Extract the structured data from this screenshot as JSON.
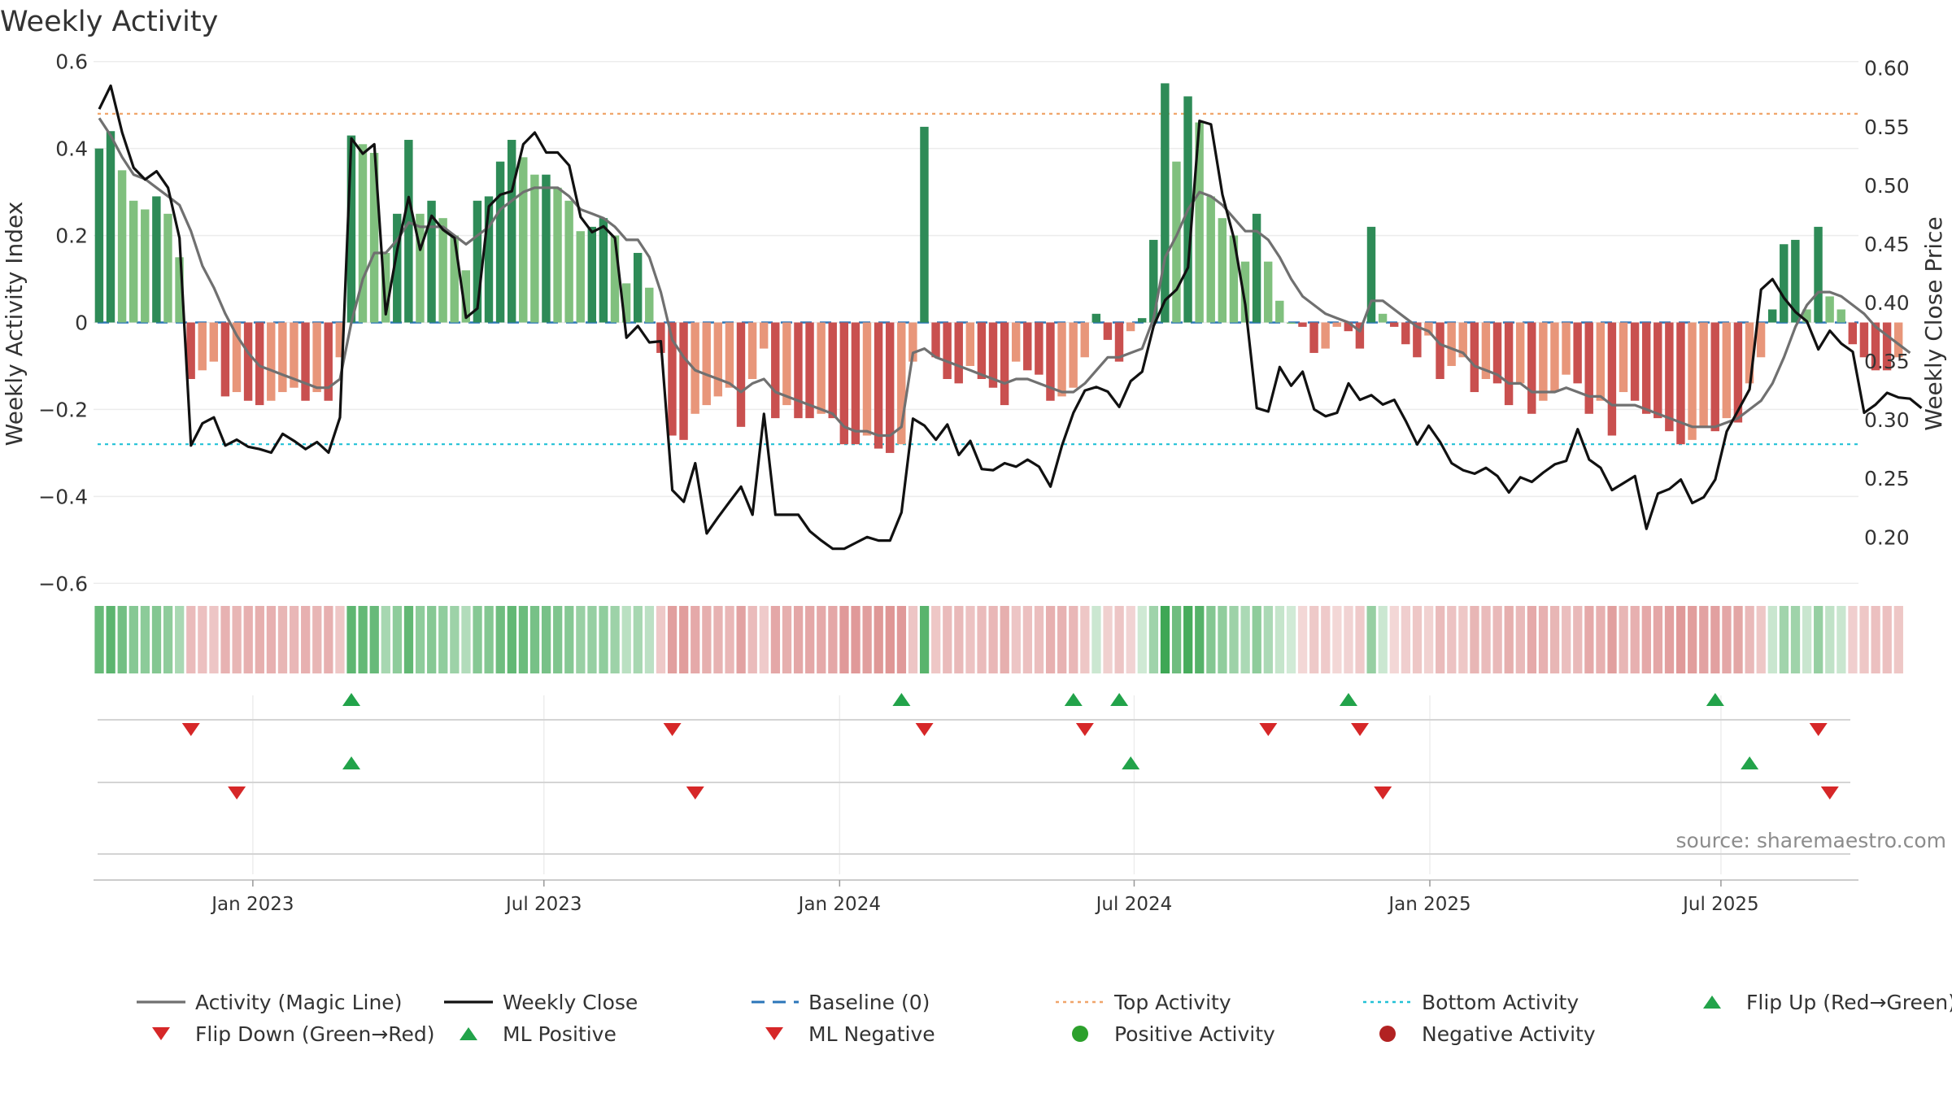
{
  "chart_data": {
    "type": "bar+line",
    "title": "Weekly Activity",
    "ylabel_left": "Weekly Activity Index",
    "ylabel_right": "Weekly Close Price",
    "source": "source: sharemaestro.com",
    "ylim_left": [
      -0.62,
      0.62
    ],
    "ylim_right": [
      0.153,
      0.613
    ],
    "yticks_left": [
      -0.6,
      -0.4,
      -0.2,
      0,
      0.2,
      0.4,
      0.6
    ],
    "yticks_left_labels": [
      "−0.6",
      "−0.4",
      "−0.2",
      "0",
      "0.2",
      "0.4",
      "0.6"
    ],
    "yticks_right": [
      0.2,
      0.25,
      0.3,
      0.35,
      0.4,
      0.45,
      0.5,
      0.55,
      0.6
    ],
    "yticks_right_labels": [
      "0.20",
      "0.25",
      "0.30",
      "0.35",
      "0.40",
      "0.45",
      "0.50",
      "0.55",
      "0.60"
    ],
    "top_activity": 0.48,
    "bottom_activity": -0.28,
    "x_start_week": 0,
    "x_end_week": 154,
    "xticks": [
      {
        "label": "Jan 2023",
        "week": 13.9
      },
      {
        "label": "Jul 2023",
        "week": 39.3
      },
      {
        "label": "Jan 2024",
        "week": 65.1
      },
      {
        "label": "Jul 2024",
        "week": 90.8
      },
      {
        "label": "Jan 2025",
        "week": 116.6
      },
      {
        "label": "Jul 2025",
        "week": 142.0
      }
    ],
    "activity": [
      0.4,
      0.44,
      0.35,
      0.28,
      0.26,
      0.29,
      0.25,
      0.15,
      -0.13,
      -0.11,
      -0.09,
      -0.17,
      -0.16,
      -0.18,
      -0.19,
      -0.18,
      -0.16,
      -0.15,
      -0.18,
      -0.16,
      -0.18,
      -0.08,
      0.43,
      0.41,
      0.39,
      0.16,
      0.25,
      0.42,
      0.25,
      0.28,
      0.24,
      0.2,
      0.12,
      0.28,
      0.29,
      0.37,
      0.42,
      0.38,
      0.34,
      0.34,
      0.31,
      0.28,
      0.21,
      0.22,
      0.24,
      0.2,
      0.09,
      0.16,
      0.08,
      -0.07,
      -0.26,
      -0.27,
      -0.21,
      -0.19,
      -0.17,
      -0.15,
      -0.24,
      -0.13,
      -0.06,
      -0.22,
      -0.19,
      -0.22,
      -0.22,
      -0.21,
      -0.22,
      -0.28,
      -0.28,
      -0.26,
      -0.29,
      -0.3,
      -0.28,
      -0.09,
      0.45,
      -0.08,
      -0.13,
      -0.14,
      -0.1,
      -0.13,
      -0.15,
      -0.19,
      -0.09,
      -0.11,
      -0.12,
      -0.18,
      -0.17,
      -0.15,
      -0.08,
      0.02,
      -0.04,
      -0.09,
      -0.02,
      0.01,
      0.19,
      0.55,
      0.37,
      0.52,
      0.46,
      0.29,
      0.24,
      0.2,
      0.14,
      0.25,
      0.14,
      0.05,
      0.0,
      -0.01,
      -0.07,
      -0.06,
      -0.01,
      -0.02,
      -0.06,
      0.22,
      0.02,
      -0.01,
      -0.05,
      -0.08,
      -0.03,
      -0.13,
      -0.1,
      -0.08,
      -0.16,
      -0.13,
      -0.14,
      -0.19,
      -0.14,
      -0.21,
      -0.18,
      -0.16,
      -0.12,
      -0.14,
      -0.21,
      -0.18,
      -0.26,
      -0.16,
      -0.18,
      -0.21,
      -0.22,
      -0.25,
      -0.28,
      -0.27,
      -0.24,
      -0.25,
      -0.22,
      -0.23,
      -0.14,
      -0.08,
      0.03,
      0.18,
      0.19,
      0.03,
      0.22,
      0.06,
      0.03,
      -0.05,
      -0.08,
      -0.11,
      -0.11,
      -0.08
    ],
    "magic_line": [
      0.47,
      0.43,
      0.38,
      0.34,
      0.33,
      0.31,
      0.29,
      0.27,
      0.21,
      0.13,
      0.08,
      0.02,
      -0.03,
      -0.07,
      -0.1,
      -0.11,
      -0.12,
      -0.13,
      -0.14,
      -0.15,
      -0.15,
      -0.13,
      0.0,
      0.1,
      0.16,
      0.16,
      0.19,
      0.23,
      0.22,
      0.22,
      0.22,
      0.2,
      0.18,
      0.2,
      0.22,
      0.26,
      0.28,
      0.3,
      0.31,
      0.31,
      0.31,
      0.29,
      0.26,
      0.25,
      0.24,
      0.22,
      0.19,
      0.19,
      0.15,
      0.07,
      -0.04,
      -0.08,
      -0.11,
      -0.12,
      -0.13,
      -0.14,
      -0.16,
      -0.14,
      -0.13,
      -0.16,
      -0.17,
      -0.18,
      -0.19,
      -0.2,
      -0.21,
      -0.24,
      -0.25,
      -0.25,
      -0.26,
      -0.26,
      -0.24,
      -0.07,
      -0.06,
      -0.08,
      -0.09,
      -0.1,
      -0.11,
      -0.12,
      -0.13,
      -0.14,
      -0.13,
      -0.13,
      -0.14,
      -0.15,
      -0.16,
      -0.16,
      -0.14,
      -0.11,
      -0.08,
      -0.08,
      -0.07,
      -0.06,
      0.01,
      0.15,
      0.2,
      0.26,
      0.3,
      0.29,
      0.27,
      0.24,
      0.21,
      0.21,
      0.19,
      0.15,
      0.1,
      0.06,
      0.04,
      0.02,
      0.01,
      0.0,
      -0.02,
      0.05,
      0.05,
      0.03,
      0.01,
      -0.01,
      -0.02,
      -0.05,
      -0.06,
      -0.07,
      -0.1,
      -0.11,
      -0.12,
      -0.14,
      -0.14,
      -0.16,
      -0.16,
      -0.16,
      -0.15,
      -0.16,
      -0.17,
      -0.17,
      -0.19,
      -0.19,
      -0.19,
      -0.2,
      -0.21,
      -0.22,
      -0.23,
      -0.24,
      -0.24,
      -0.24,
      -0.23,
      -0.22,
      -0.2,
      -0.18,
      -0.14,
      -0.08,
      -0.01,
      0.04,
      0.07,
      0.07,
      0.06,
      0.04,
      0.02,
      -0.01,
      -0.03,
      -0.05,
      -0.07
    ],
    "weekly_close": [
      0.565,
      0.585,
      0.545,
      0.515,
      0.505,
      0.512,
      0.498,
      0.455,
      0.278,
      0.297,
      0.302,
      0.278,
      0.283,
      0.277,
      0.275,
      0.272,
      0.288,
      0.282,
      0.275,
      0.281,
      0.272,
      0.302,
      0.54,
      0.527,
      0.535,
      0.39,
      0.445,
      0.49,
      0.445,
      0.474,
      0.462,
      0.455,
      0.387,
      0.395,
      0.482,
      0.492,
      0.495,
      0.535,
      0.545,
      0.528,
      0.528,
      0.517,
      0.473,
      0.46,
      0.465,
      0.455,
      0.37,
      0.38,
      0.366,
      0.367,
      0.24,
      0.23,
      0.263,
      0.203,
      0.217,
      0.23,
      0.243,
      0.219,
      0.305,
      0.219,
      0.219,
      0.219,
      0.205,
      0.197,
      0.19,
      0.19,
      0.195,
      0.2,
      0.197,
      0.197,
      0.221,
      0.301,
      0.295,
      0.283,
      0.296,
      0.27,
      0.282,
      0.258,
      0.257,
      0.263,
      0.26,
      0.266,
      0.26,
      0.243,
      0.278,
      0.306,
      0.325,
      0.328,
      0.324,
      0.311,
      0.333,
      0.341,
      0.38,
      0.402,
      0.411,
      0.43,
      0.555,
      0.552,
      0.492,
      0.455,
      0.398,
      0.31,
      0.307,
      0.345,
      0.329,
      0.341,
      0.309,
      0.303,
      0.306,
      0.331,
      0.317,
      0.321,
      0.313,
      0.317,
      0.299,
      0.279,
      0.295,
      0.281,
      0.263,
      0.257,
      0.254,
      0.259,
      0.252,
      0.238,
      0.251,
      0.247,
      0.255,
      0.262,
      0.265,
      0.292,
      0.266,
      0.259,
      0.24,
      0.246,
      0.252,
      0.207,
      0.237,
      0.241,
      0.249,
      0.229,
      0.234,
      0.249,
      0.29,
      0.308,
      0.326,
      0.411,
      0.42,
      0.404,
      0.392,
      0.384,
      0.36,
      0.376,
      0.365,
      0.358,
      0.306,
      0.313,
      0.323,
      0.319,
      0.318,
      0.31
    ],
    "flip_up_weeks": [
      22,
      70,
      85,
      89,
      109,
      141
    ],
    "flip_down_weeks": [
      8,
      50,
      72,
      86,
      102,
      110,
      150
    ],
    "ml_positive_weeks": [
      22,
      90,
      144
    ],
    "ml_negative_weeks": [
      12,
      52,
      112,
      151
    ],
    "legend": [
      {
        "label": "Activity (Magic Line)",
        "kind": "line",
        "color": "#707070"
      },
      {
        "label": "Weekly Close",
        "kind": "line",
        "color": "#111111"
      },
      {
        "label": "Baseline (0)",
        "kind": "dash",
        "color": "#2b76b9"
      },
      {
        "label": "Top Activity",
        "kind": "dot",
        "color": "#f0a56a"
      },
      {
        "label": "Bottom Activity",
        "kind": "dot",
        "color": "#22c1d6"
      },
      {
        "label": "Flip Up (Red→Green)",
        "kind": "tri-up",
        "color": "#22a34a"
      },
      {
        "label": "Flip Down (Green→Red)",
        "kind": "tri-down",
        "color": "#d62728"
      },
      {
        "label": "ML Positive",
        "kind": "tri-up",
        "color": "#22a34a"
      },
      {
        "label": "ML Negative",
        "kind": "tri-down",
        "color": "#d62728"
      },
      {
        "label": "Positive Activity",
        "kind": "circle",
        "color": "#2ca02c"
      },
      {
        "label": "Negative Activity",
        "kind": "circle",
        "color": "#b22222"
      }
    ],
    "colors": {
      "strong_green": "#2e8b57",
      "light_green": "#80c07e",
      "strong_red": "#c9504f",
      "light_red": "#e8967a",
      "magic_line": "#707070",
      "close": "#111111",
      "baseline": "#2b76b9",
      "top": "#f0a56a",
      "bottom": "#22c1d6",
      "marker_up": "#22a34a",
      "marker_down": "#d62728"
    }
  }
}
